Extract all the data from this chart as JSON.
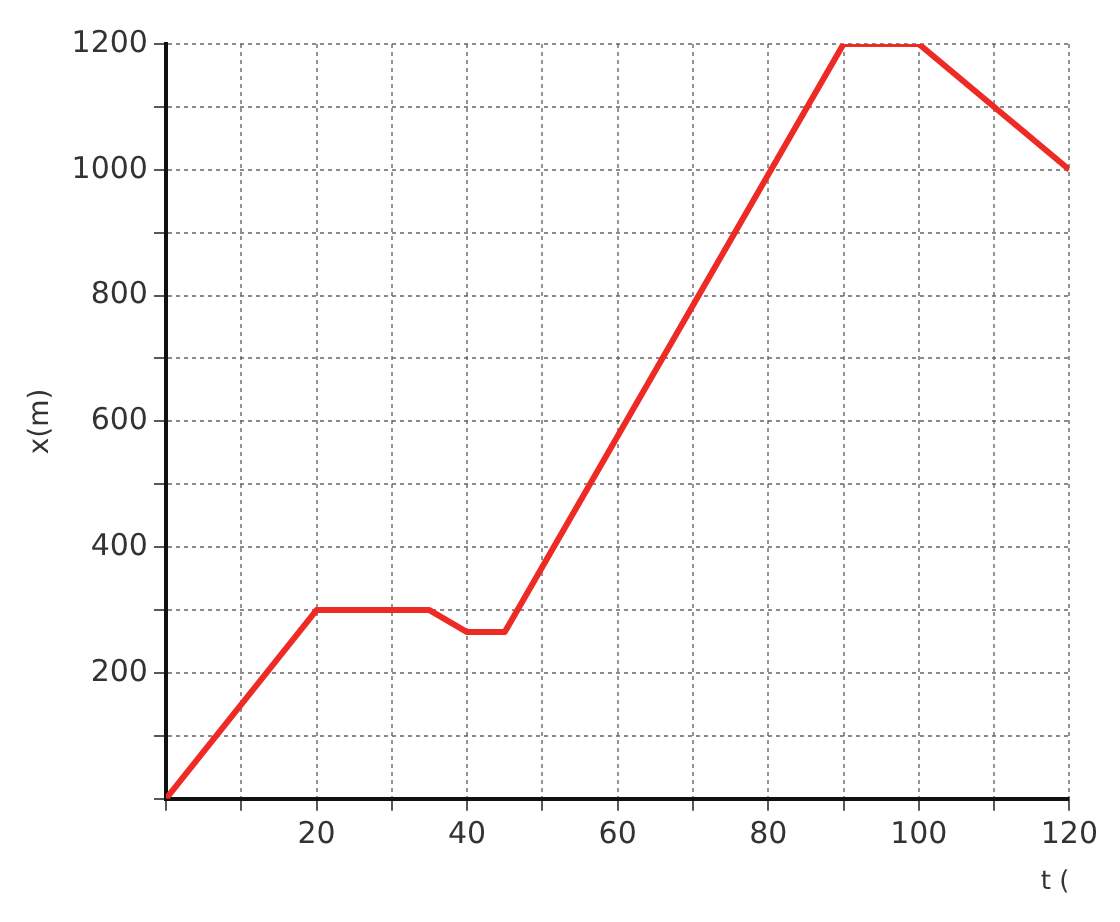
{
  "chart_data": {
    "type": "line",
    "xlabel": "t (",
    "ylabel": "x(m)",
    "x": [
      0,
      20,
      35,
      40,
      45,
      90,
      100,
      120
    ],
    "series": [
      {
        "color": "#ee2a24",
        "values": [
          0,
          300,
          300,
          265,
          265,
          1200,
          1200,
          1000
        ]
      }
    ],
    "xlim": [
      0,
      120
    ],
    "xticks": [
      {
        "value": 0,
        "label": null
      },
      {
        "value": 10,
        "label": null
      },
      20,
      {
        "value": 30,
        "label": null
      },
      40,
      {
        "value": 50,
        "label": null
      },
      60,
      {
        "value": 70,
        "label": null
      },
      80,
      {
        "value": 90,
        "label": null
      },
      100,
      {
        "value": 110,
        "label": null
      },
      120
    ],
    "ylim": [
      0,
      1200
    ],
    "yticks": [
      {
        "value": 0,
        "label": null
      },
      {
        "value": 100,
        "label": null
      },
      200,
      {
        "value": 300,
        "label": null
      },
      400,
      {
        "value": 500,
        "label": null
      },
      600,
      {
        "value": 700,
        "label": null
      },
      800,
      {
        "value": 900,
        "label": null
      },
      1000,
      {
        "value": 1100,
        "label": null
      },
      1200
    ],
    "grid": true,
    "marker": "none",
    "line_style": "solid",
    "legend": false
  }
}
